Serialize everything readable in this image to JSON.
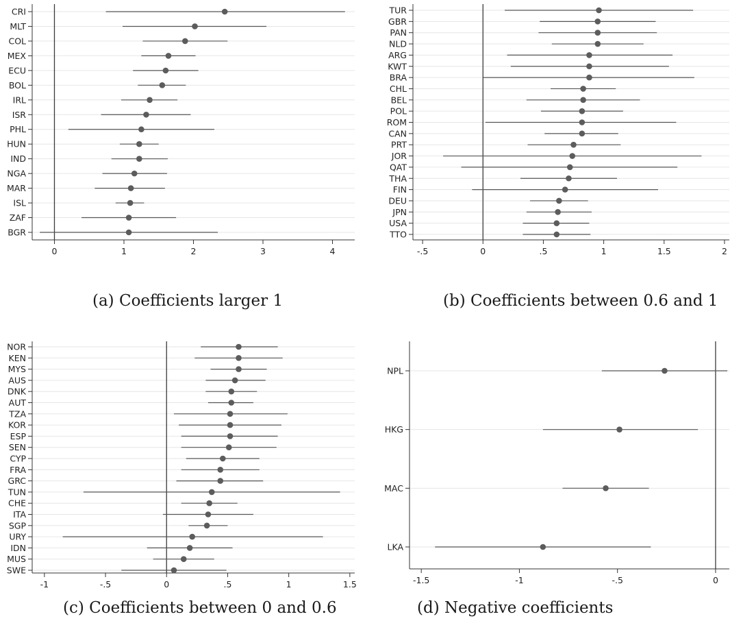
{
  "chart_data": [
    {
      "type": "scatter",
      "panel": "a",
      "caption": "(a) Coefficients larger 1",
      "categories": [
        "CRI",
        "MLT",
        "COL",
        "MEX",
        "ECU",
        "BOL",
        "IRL",
        "ISR",
        "PHL",
        "HUN",
        "IND",
        "NGA",
        "MAR",
        "ISL",
        "ZAF",
        "BGR"
      ],
      "series": [
        {
          "values": [
            2.45,
            2.02,
            1.88,
            1.64,
            1.6,
            1.55,
            1.37,
            1.32,
            1.25,
            1.22,
            1.22,
            1.15,
            1.1,
            1.09,
            1.07,
            1.07
          ],
          "ci_low": [
            0.74,
            0.98,
            1.27,
            1.25,
            1.13,
            1.2,
            0.96,
            0.67,
            0.2,
            0.94,
            0.82,
            0.69,
            0.58,
            0.88,
            0.39,
            -0.21
          ],
          "ci_high": [
            4.18,
            3.05,
            2.49,
            2.03,
            2.07,
            1.89,
            1.77,
            1.96,
            2.3,
            1.5,
            1.63,
            1.62,
            1.59,
            1.29,
            1.75,
            2.35
          ]
        }
      ],
      "xticks": [
        "0",
        "1",
        "2",
        "3",
        "4"
      ],
      "xlim": [
        -0.32,
        4.32
      ],
      "reference_line_x": 0,
      "grid": true
    },
    {
      "type": "scatter",
      "panel": "b",
      "caption": "(b) Coefficients between 0.6 and 1",
      "categories": [
        "TUR",
        "GBR",
        "PAN",
        "NLD",
        "ARG",
        "KWT",
        "BRA",
        "CHL",
        "BEL",
        "POL",
        "ROM",
        "CAN",
        "PRT",
        "JOR",
        "QAT",
        "THA",
        "FIN",
        "DEU",
        "JPN",
        "USA",
        "TTO"
      ],
      "series": [
        {
          "values": [
            0.96,
            0.95,
            0.95,
            0.95,
            0.88,
            0.88,
            0.88,
            0.83,
            0.83,
            0.82,
            0.82,
            0.82,
            0.75,
            0.74,
            0.72,
            0.71,
            0.68,
            0.63,
            0.62,
            0.61,
            0.61
          ],
          "ci_low": [
            0.18,
            0.47,
            0.46,
            0.57,
            0.2,
            0.23,
            0.0,
            0.56,
            0.36,
            0.48,
            0.02,
            0.51,
            0.37,
            -0.33,
            -0.18,
            0.31,
            -0.09,
            0.39,
            0.36,
            0.33,
            0.33
          ],
          "ci_high": [
            1.74,
            1.43,
            1.44,
            1.33,
            1.57,
            1.54,
            1.75,
            1.1,
            1.3,
            1.16,
            1.6,
            1.12,
            1.14,
            1.81,
            1.61,
            1.11,
            1.45,
            0.87,
            0.9,
            0.88,
            0.89
          ]
        }
      ],
      "xticks": [
        "-.5",
        "0",
        ".5",
        "1",
        "1.5",
        "2"
      ],
      "xlim": [
        -0.58,
        2.04
      ],
      "reference_line_x": 0,
      "grid": true
    },
    {
      "type": "scatter",
      "panel": "c",
      "caption": "(c) Coefficients between 0 and 0.6",
      "categories": [
        "NOR",
        "KEN",
        "MYS",
        "AUS",
        "DNK",
        "AUT",
        "TZA",
        "KOR",
        "ESP",
        "SEN",
        "CYP",
        "FRA",
        "GRC",
        "TUN",
        "CHE",
        "ITA",
        "SGP",
        "URY",
        "IDN",
        "MUS",
        "SWE"
      ],
      "series": [
        {
          "values": [
            0.59,
            0.59,
            0.59,
            0.56,
            0.53,
            0.53,
            0.52,
            0.52,
            0.52,
            0.51,
            0.46,
            0.44,
            0.44,
            0.37,
            0.35,
            0.34,
            0.33,
            0.21,
            0.19,
            0.14,
            0.06
          ],
          "ci_low": [
            0.28,
            0.23,
            0.36,
            0.32,
            0.32,
            0.34,
            0.06,
            0.1,
            0.12,
            0.12,
            0.16,
            0.12,
            0.08,
            -0.68,
            0.12,
            -0.03,
            0.18,
            -0.85,
            -0.16,
            -0.11,
            -0.37
          ],
          "ci_high": [
            0.91,
            0.95,
            0.82,
            0.81,
            0.74,
            0.71,
            0.99,
            0.94,
            0.91,
            0.9,
            0.76,
            0.76,
            0.79,
            1.42,
            0.58,
            0.71,
            0.5,
            1.28,
            0.54,
            0.39,
            0.49
          ]
        }
      ],
      "xticks": [
        "-1",
        "-.5",
        "0",
        ".5",
        "1",
        "1.5"
      ],
      "xlim": [
        -1.1,
        1.54
      ],
      "reference_line_x": 0,
      "grid": true
    },
    {
      "type": "scatter",
      "panel": "d",
      "caption": "(d) Negative coefficients",
      "categories": [
        "NPL",
        "HKG",
        "MAC",
        "LKA"
      ],
      "series": [
        {
          "values": [
            -0.26,
            -0.49,
            -0.56,
            -0.88
          ],
          "ci_low": [
            -0.58,
            -0.88,
            -0.78,
            -1.43
          ],
          "ci_high": [
            0.06,
            -0.09,
            -0.34,
            -0.33
          ]
        }
      ],
      "xticks": [
        "-1.5",
        "-1",
        "-.5",
        "0"
      ],
      "xlim": [
        -1.56,
        0.07
      ],
      "reference_line_x": 0,
      "grid": true
    }
  ]
}
